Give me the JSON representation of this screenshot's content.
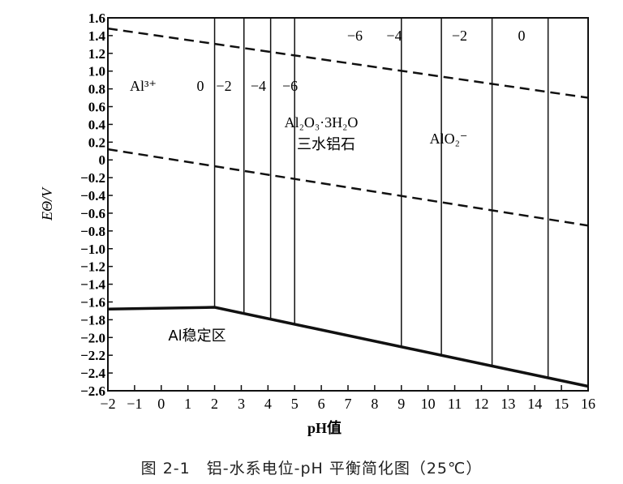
{
  "chart_data": {
    "type": "line",
    "title": "",
    "xlabel": "pH值",
    "ylabel": "EΘ/V",
    "xlim": [
      -2,
      16
    ],
    "ylim": [
      -2.6,
      1.6
    ],
    "x_ticks": [
      "-2",
      "-1",
      "0",
      "1",
      "2",
      "3",
      "4",
      "5",
      "6",
      "7",
      "8",
      "9",
      "10",
      "11",
      "12",
      "13",
      "14",
      "15",
      "16"
    ],
    "y_ticks": [
      "1.6",
      "1.4",
      "1.2",
      "1.0",
      "0.8",
      "0.6",
      "0.4",
      "0.2",
      "0",
      "-0.2",
      "-0.4",
      "-0.6",
      "-0.8",
      "-1.0",
      "-1.2",
      "-1.4",
      "-1.6",
      "-1.8",
      "-2.0",
      "-2.2",
      "-2.4",
      "-2.6"
    ],
    "grid": false,
    "series": [
      {
        "style": "dashed",
        "x": [
          -2,
          16
        ],
        "y": [
          1.48,
          0.7
        ]
      },
      {
        "style": "dashed",
        "x": [
          -2,
          16
        ],
        "y": [
          0.12,
          -0.74
        ]
      },
      {
        "style": "solid-thick",
        "x": [
          -2,
          2,
          16
        ],
        "y": [
          -1.68,
          -1.66,
          -2.55
        ]
      }
    ],
    "vertical_boundaries_pH": [
      2.0,
      3.1,
      4.1,
      5.0,
      9.0,
      10.5,
      12.4,
      14.5
    ],
    "annotations": {
      "al3": "Al³⁺",
      "c_left_0": "0",
      "c_left_m2": "−2",
      "c_left_m4": "−4",
      "c_left_m6": "−6",
      "c_right_m6": "−6",
      "c_right_m4": "−4",
      "c_right_m2": "−2",
      "c_right_0": "0",
      "gibbsite_formula": "Al₂O₃·3H₂O",
      "gibbsite_name": "三水铝石",
      "aluminate": "AlO₂⁻",
      "al_stable": "Al稳定区"
    }
  },
  "caption": "图 2-1　铝-水系电位-pH 平衡简化图（25℃）"
}
